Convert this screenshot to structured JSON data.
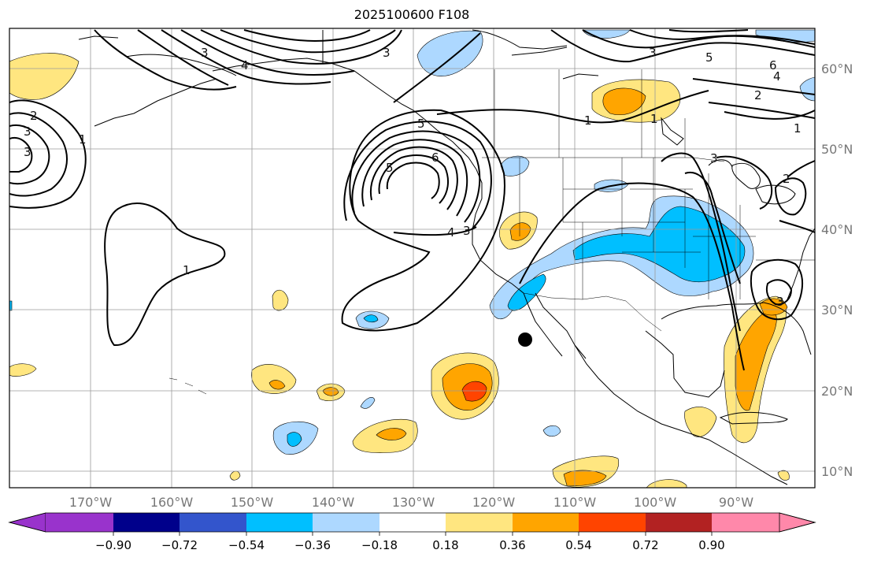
{
  "title": "2025100600 F108",
  "map": {
    "lon_labels": [
      "170°W",
      "160°W",
      "150°W",
      "140°W",
      "130°W",
      "120°W",
      "110°W",
      "100°W",
      "90°W"
    ],
    "lat_labels": [
      "60°N",
      "50°N",
      "40°N",
      "30°N",
      "20°N",
      "10°N"
    ],
    "contour_labels": [
      "1",
      "2",
      "3",
      "4",
      "5",
      "6",
      "1",
      "1",
      "2",
      "3",
      "4",
      "5",
      "6",
      "3",
      "5",
      "4",
      "3",
      "1",
      "3",
      "3",
      "2",
      "3",
      "1",
      "3"
    ],
    "marker": "storm-center-dot"
  },
  "colorbar": {
    "ticks": [
      "−0.90",
      "−0.72",
      "−0.54",
      "−0.36",
      "−0.18",
      "0.18",
      "0.36",
      "0.54",
      "0.72",
      "0.90"
    ],
    "colors": [
      "#9933cc",
      "#00008b",
      "#3355cc",
      "#00bfff",
      "#add8ff",
      "#ffffff",
      "#ffe680",
      "#ffa500",
      "#ff4400",
      "#b22222",
      "#ff88aa"
    ]
  },
  "fill_colors": {
    "light_blue": "#add8ff",
    "blue": "#00bfff",
    "light_yellow": "#ffe680",
    "orange": "#ffa500",
    "red_orange": "#ff4400"
  }
}
